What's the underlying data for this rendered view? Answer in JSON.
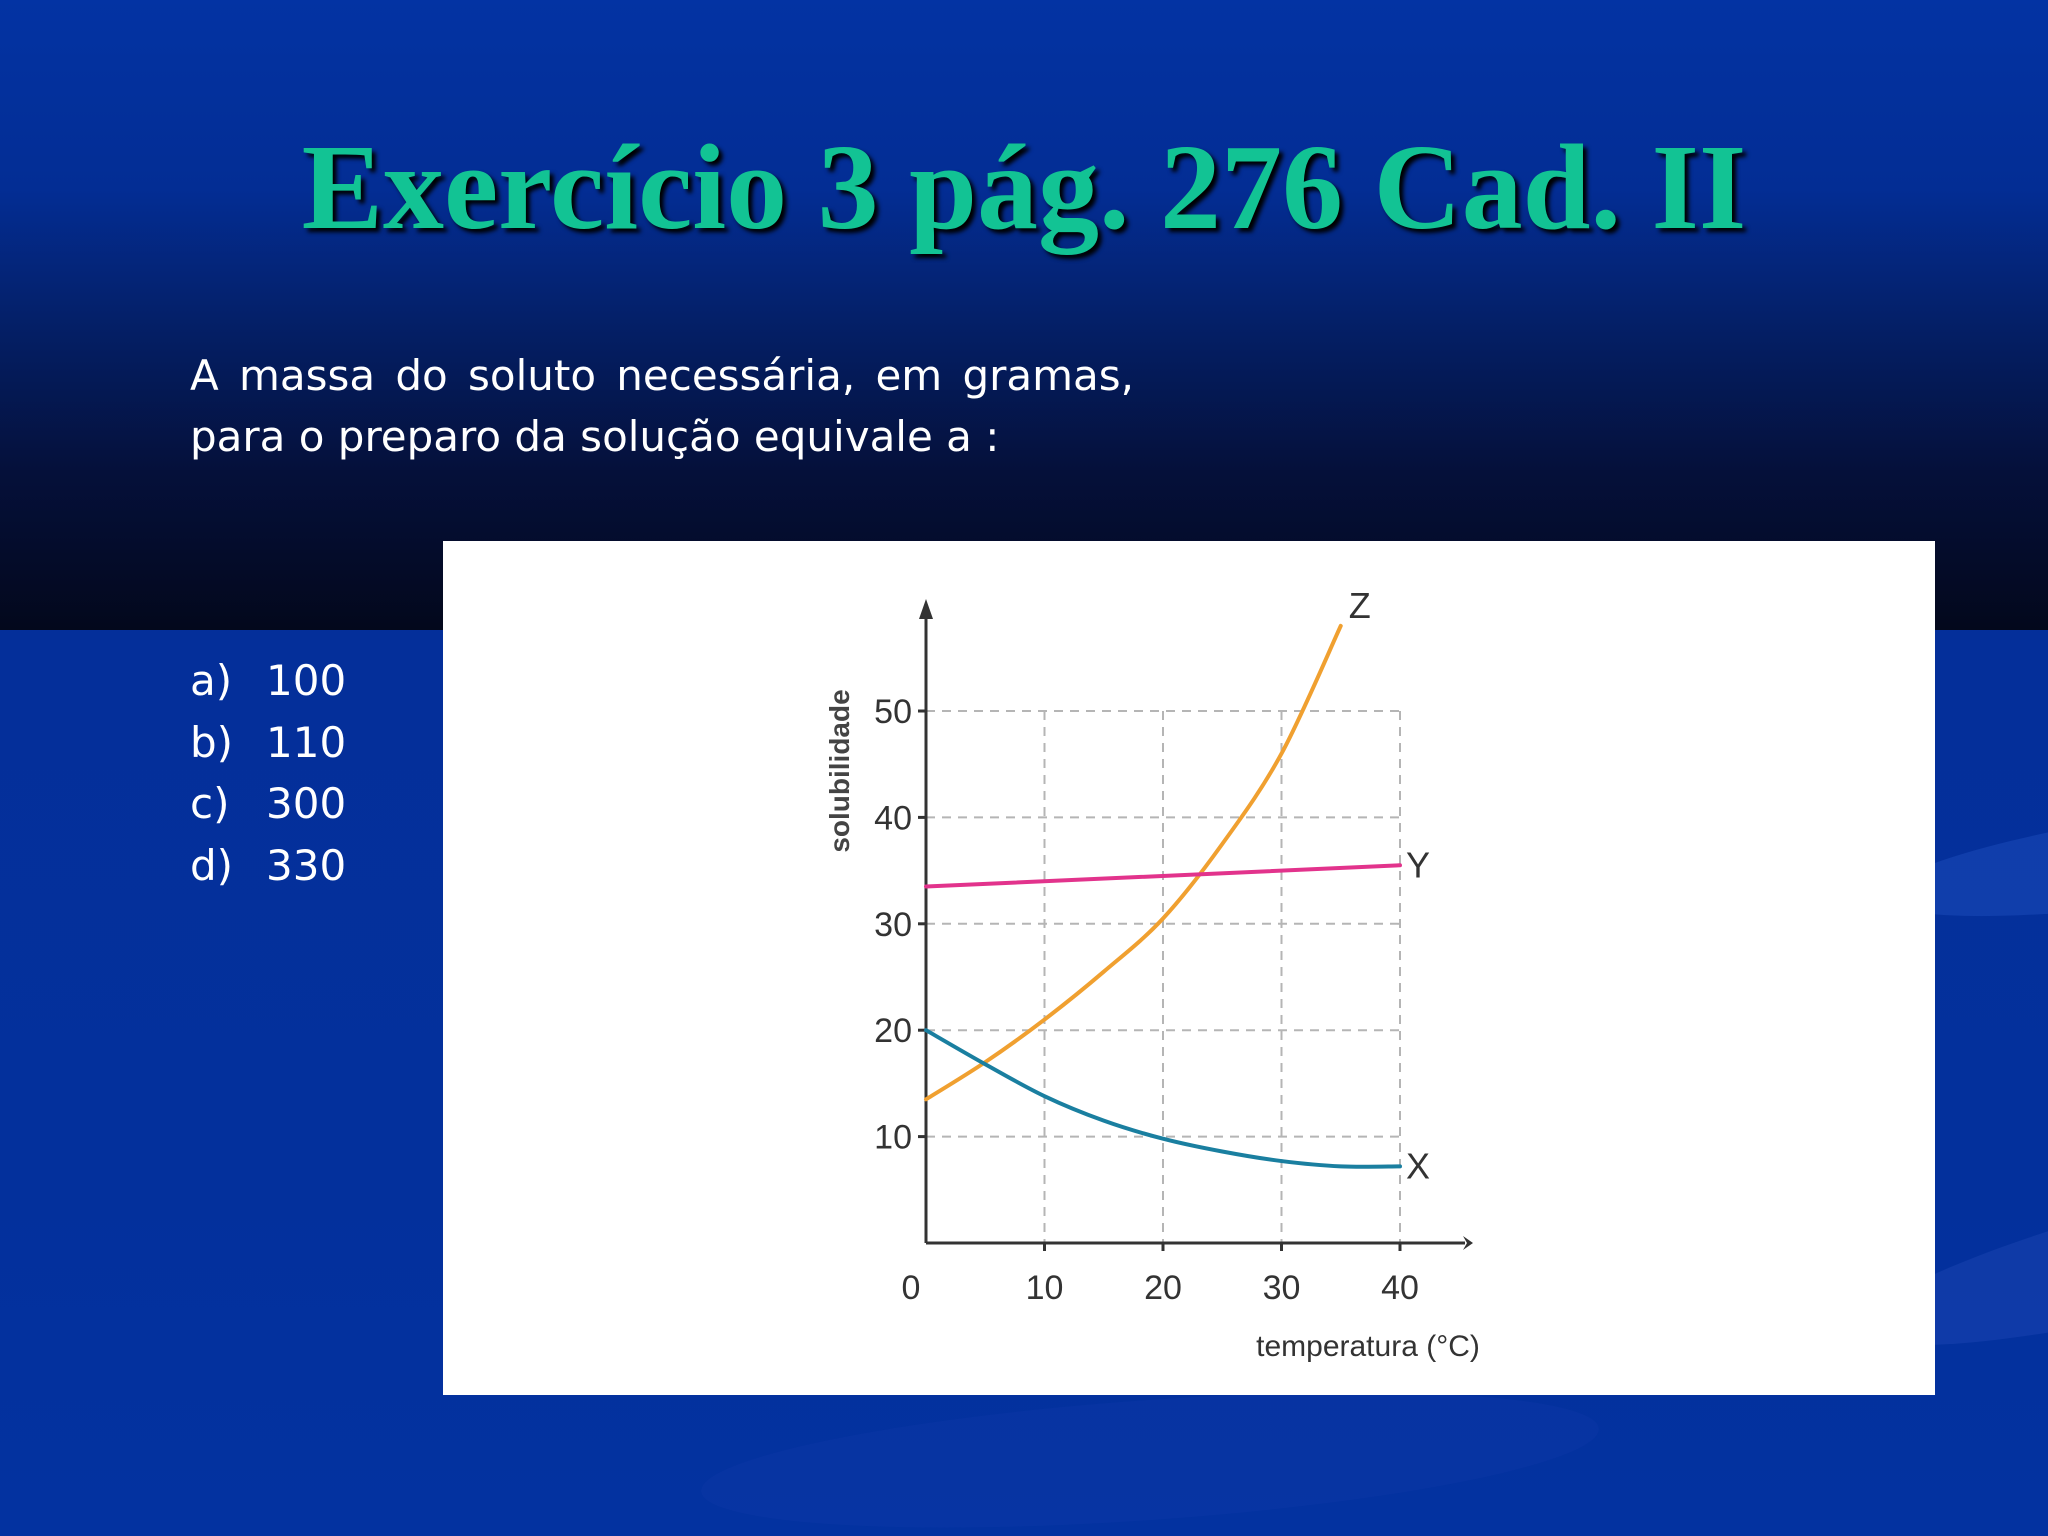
{
  "slide": {
    "title": "Exercício 3 pág. 276 Cad. II",
    "question": "A  massa do soluto necessária, em gramas, para o preparo da solução equivale a :",
    "options": [
      {
        "letter": "a)",
        "value": "100"
      },
      {
        "letter": "b)",
        "value": "110"
      },
      {
        "letter": "c)",
        "value": "300"
      },
      {
        "letter": "d)",
        "value": "330"
      }
    ],
    "colors": {
      "title": "#12c394",
      "background": "#032d96",
      "text": "#ffffff"
    }
  },
  "chart_data": {
    "type": "line",
    "title": "",
    "xlabel": "temperatura (°C)",
    "ylabel": "solubilidade",
    "xlim": [
      0,
      45
    ],
    "ylim": [
      0,
      58
    ],
    "xticks": [
      0,
      10,
      20,
      30,
      40
    ],
    "yticks": [
      10,
      20,
      30,
      40,
      50
    ],
    "grid": true,
    "series": [
      {
        "name": "Z",
        "color": "#f0a030",
        "x": [
          0,
          5,
          10,
          15,
          20,
          25,
          30,
          35
        ],
        "y": [
          13.5,
          17,
          21,
          25.5,
          30.5,
          37.5,
          46,
          58
        ]
      },
      {
        "name": "Y",
        "color": "#e2338c",
        "x": [
          0,
          40
        ],
        "y": [
          33.5,
          35.5
        ]
      },
      {
        "name": "X",
        "color": "#1a7fa0",
        "x": [
          0,
          5,
          10,
          15,
          20,
          25,
          30,
          35,
          40
        ],
        "y": [
          20,
          16.8,
          13.8,
          11.5,
          9.8,
          8.6,
          7.7,
          7.2,
          7.2
        ]
      }
    ]
  }
}
